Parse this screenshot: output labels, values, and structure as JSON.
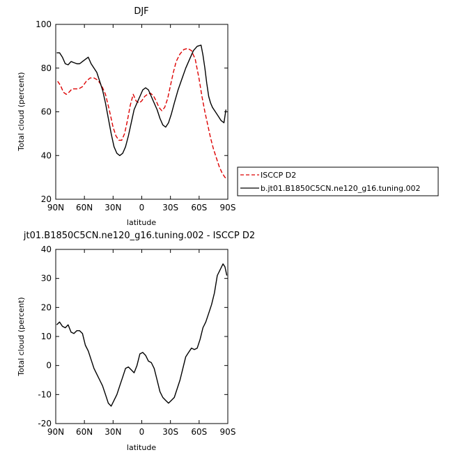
{
  "chart_data": [
    {
      "type": "line",
      "title": "DJF",
      "xlabel": "latitude",
      "ylabel": "Total cloud (percent)",
      "xlim": [
        -90,
        90
      ],
      "ylim": [
        20,
        100
      ],
      "xtick_values": [
        -90,
        -60,
        -30,
        0,
        30,
        60,
        90
      ],
      "xtick_labels": [
        "90N",
        "60N",
        "30N",
        "0",
        "30S",
        "60S",
        "90S"
      ],
      "yticks": [
        20,
        40,
        60,
        80,
        100
      ],
      "legend_position": "right",
      "series": [
        {
          "name": "ISCCP D2",
          "color": "#dd0000",
          "dash": "dashed",
          "x": [
            -88,
            -85,
            -82,
            -79,
            -76,
            -73,
            -70,
            -66,
            -62,
            -58,
            -54,
            -50,
            -46,
            -42,
            -38,
            -34,
            -30,
            -27,
            -24,
            -21,
            -18,
            -15,
            -12,
            -9,
            -6,
            -3,
            0,
            3,
            6,
            9,
            12,
            15,
            18,
            21,
            24,
            27,
            30,
            33,
            36,
            40,
            44,
            48,
            52,
            56,
            60,
            63,
            66,
            69,
            72,
            75,
            78,
            81,
            84,
            87,
            89
          ],
          "values": [
            74,
            72,
            69,
            68,
            69,
            70.5,
            70.5,
            70.5,
            71.5,
            74,
            75.5,
            75.5,
            74.5,
            72,
            68,
            61,
            53,
            49,
            47,
            47,
            50,
            56,
            63,
            68,
            65,
            64,
            65,
            67,
            68,
            68.5,
            67.5,
            65,
            62,
            60.5,
            62,
            66,
            72,
            78,
            83,
            86.5,
            88.5,
            89,
            88,
            84,
            75,
            67,
            60,
            54,
            48,
            43,
            39,
            35,
            32,
            30,
            29.5
          ]
        },
        {
          "name": "b.jt01.B1850C5CN.ne120_g16.tuning.002",
          "color": "#000000",
          "dash": "solid",
          "x": [
            -89,
            -86,
            -83,
            -80,
            -77,
            -74,
            -71,
            -68,
            -65,
            -62,
            -59,
            -56,
            -53,
            -50,
            -47,
            -44,
            -41,
            -38,
            -35,
            -32,
            -29,
            -26,
            -23,
            -20,
            -17,
            -14,
            -11,
            -8,
            -5,
            -2,
            1,
            4,
            7,
            10,
            13,
            16,
            19,
            22,
            25,
            28,
            31,
            34,
            38,
            42,
            46,
            50,
            54,
            58,
            62,
            64,
            66,
            68,
            70,
            72,
            74,
            77,
            80,
            83,
            86,
            88
          ],
          "values": [
            87,
            87,
            85,
            82,
            81.5,
            83,
            82.5,
            82,
            82,
            83,
            84,
            85,
            82,
            80,
            78,
            74,
            70,
            64,
            57,
            50,
            44,
            41,
            40,
            41,
            44,
            49,
            55,
            61,
            64,
            67,
            70,
            71,
            70,
            67,
            64,
            61,
            57,
            54,
            53,
            55,
            59,
            64,
            70,
            75,
            80,
            84,
            88,
            90,
            90.5,
            86,
            80,
            73,
            67,
            64,
            62,
            60,
            58,
            56,
            55,
            61
          ]
        }
      ]
    },
    {
      "type": "line",
      "title": "jt01.B1850C5CN.ne120_g16.tuning.002 - ISCCP D2",
      "xlabel": "latitude",
      "ylabel": "Total cloud (percent)",
      "xlim": [
        -90,
        90
      ],
      "ylim": [
        -20,
        40
      ],
      "xtick_values": [
        -90,
        -60,
        -30,
        0,
        30,
        60,
        90
      ],
      "xtick_labels": [
        "90N",
        "60N",
        "30N",
        "0",
        "30S",
        "60S",
        "90S"
      ],
      "yticks": [
        -20,
        -10,
        0,
        10,
        20,
        30,
        40
      ],
      "series": [
        {
          "color": "#000000",
          "dash": "solid",
          "x": [
            -89,
            -86,
            -83,
            -80,
            -77,
            -74,
            -71,
            -68,
            -65,
            -62,
            -59,
            -56,
            -53,
            -50,
            -47,
            -44,
            -41,
            -38,
            -35,
            -32,
            -29,
            -26,
            -23,
            -20,
            -17,
            -14,
            -11,
            -8,
            -5,
            -2,
            1,
            4,
            7,
            10,
            13,
            16,
            19,
            22,
            25,
            28,
            31,
            34,
            37,
            40,
            43,
            46,
            49,
            52,
            55,
            58,
            61,
            64,
            67,
            70,
            73,
            76,
            79,
            82,
            85,
            87,
            89
          ],
          "values": [
            14,
            15,
            13.5,
            13,
            14,
            11.5,
            11,
            12,
            12,
            11,
            7,
            5,
            2,
            -1,
            -3,
            -5,
            -7,
            -10,
            -13,
            -14,
            -12,
            -10,
            -7,
            -4,
            -1,
            -0.5,
            -1.5,
            -2.5,
            0,
            4,
            4.5,
            3.5,
            1.5,
            1,
            -1,
            -5,
            -9,
            -11,
            -12,
            -13,
            -12,
            -11,
            -8,
            -5,
            -1,
            3,
            4.5,
            6,
            5.5,
            6,
            9,
            13,
            15,
            18,
            21,
            25,
            31,
            33,
            35,
            34,
            31
          ]
        }
      ]
    }
  ]
}
